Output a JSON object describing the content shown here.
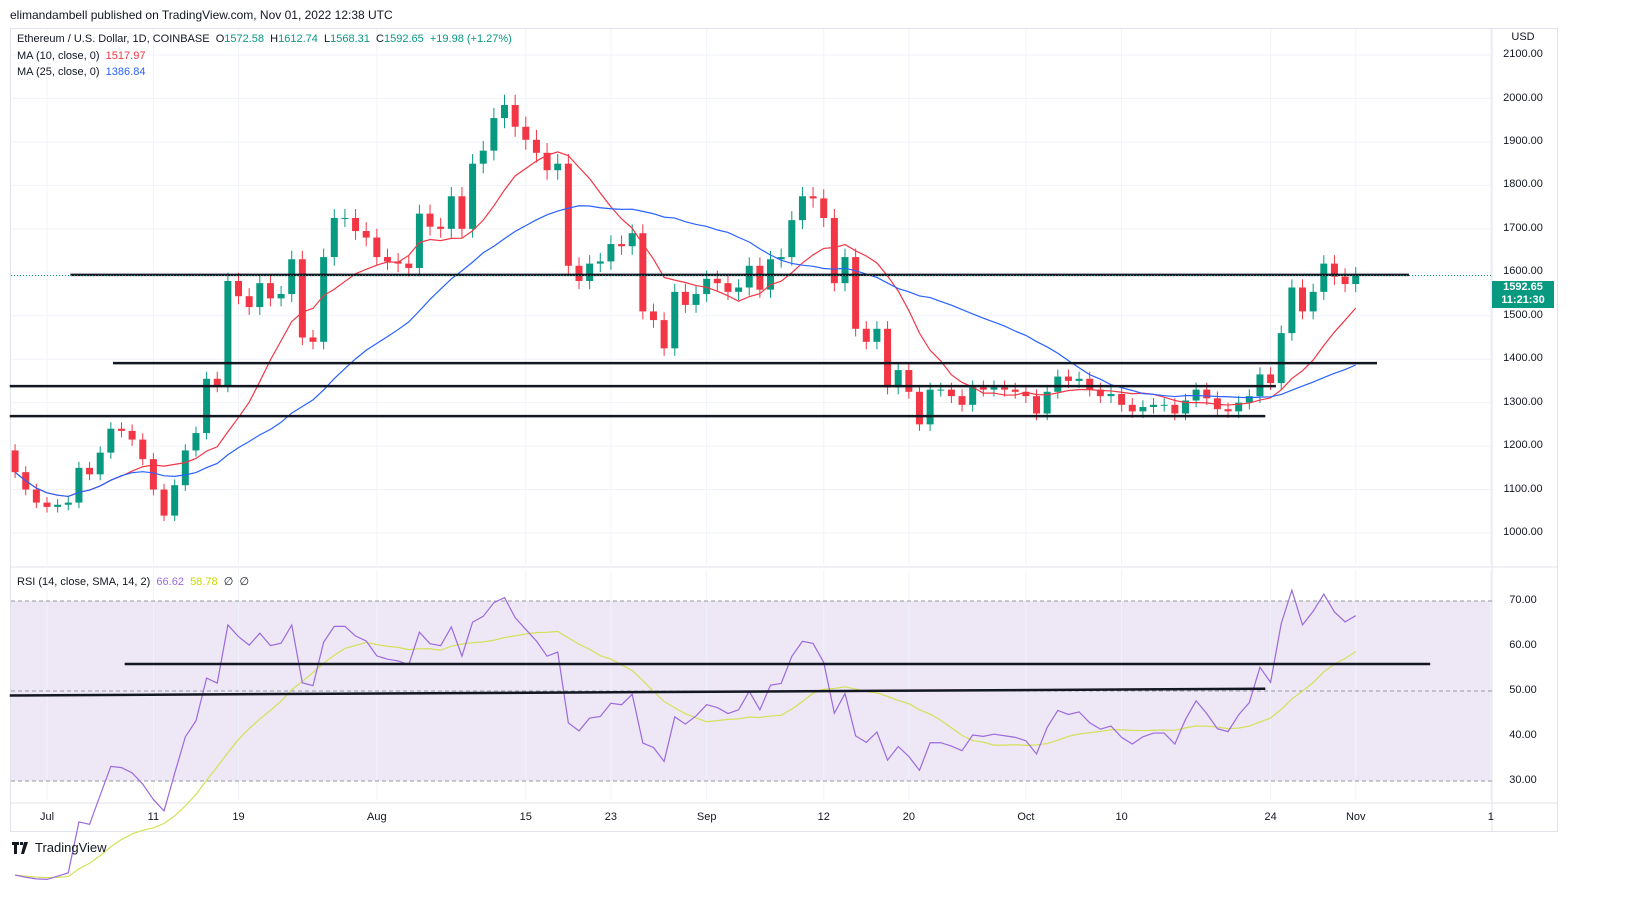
{
  "publisher_line": "elimandambell published on TradingView.com, Nov 01, 2022 12:38 UTC",
  "legend": {
    "symbol": "Ethereum / U.S. Dollar, 1D, COINBASE",
    "o_label": "O",
    "o": "1572.58",
    "h_label": "H",
    "h": "1612.74",
    "l_label": "L",
    "l": "1568.31",
    "c_label": "C",
    "c": "1592.65",
    "change": "+19.98 (+1.27%)",
    "ma10_label": "MA (10, close, 0)",
    "ma10": "1517.97",
    "ma25_label": "MA (25, close, 0)",
    "ma25": "1386.84",
    "rsi_label": "RSI (14, close, SMA, 14, 2)",
    "rsi": "66.62",
    "rsi_sma": "58.78",
    "rsi_extra1": "∅",
    "rsi_extra2": "∅"
  },
  "currency": "USD",
  "last_price": {
    "price": "1592.65",
    "countdown": "11:21:30"
  },
  "footer": {
    "brand": "TradingView",
    "icon": "tradingview-logo-icon"
  },
  "colors": {
    "up": "#089981",
    "down": "#f23645",
    "ma10": "#f23645",
    "ma25": "#2962ff",
    "rsi": "#9c6ade",
    "rsi_sma": "#d4e157",
    "rsi_band": "#ede7f6"
  },
  "chart_data": {
    "type": "candlestick",
    "title": "Ethereum / U.S. Dollar, 1D, COINBASE",
    "start_date": "2022-06-28",
    "closes": [
      1140,
      1100,
      1070,
      1060,
      1065,
      1070,
      1150,
      1135,
      1185,
      1240,
      1235,
      1215,
      1170,
      1100,
      1040,
      1110,
      1190,
      1230,
      1355,
      1340,
      1580,
      1545,
      1520,
      1575,
      1540,
      1550,
      1630,
      1450,
      1440,
      1635,
      1725,
      1725,
      1695,
      1680,
      1635,
      1625,
      1620,
      1610,
      1735,
      1705,
      1700,
      1775,
      1700,
      1850,
      1880,
      1955,
      1985,
      1935,
      1905,
      1875,
      1835,
      1850,
      1615,
      1580,
      1620,
      1625,
      1665,
      1660,
      1690,
      1510,
      1490,
      1425,
      1555,
      1525,
      1550,
      1585,
      1575,
      1555,
      1565,
      1615,
      1560,
      1630,
      1635,
      1720,
      1775,
      1770,
      1725,
      1575,
      1635,
      1470,
      1440,
      1470,
      1335,
      1375,
      1325,
      1250,
      1330,
      1330,
      1315,
      1295,
      1335,
      1330,
      1335,
      1330,
      1325,
      1315,
      1275,
      1325,
      1360,
      1350,
      1355,
      1330,
      1315,
      1320,
      1295,
      1280,
      1290,
      1295,
      1295,
      1275,
      1305,
      1330,
      1310,
      1285,
      1280,
      1300,
      1315,
      1365,
      1345,
      1460,
      1565,
      1510,
      1555,
      1620,
      1590,
      1573,
      1593
    ],
    "first_open": 1190,
    "price_axis": {
      "ticks": [
        "1000.00",
        "1100.00",
        "1200.00",
        "1300.00",
        "1400.00",
        "1500.00",
        "1600.00",
        "1700.00",
        "1800.00",
        "1900.00",
        "2000.00",
        "2100.00"
      ],
      "range": [
        960,
        2145
      ]
    },
    "rsi_axis": {
      "ticks": [
        "30.00",
        "40.00",
        "50.00",
        "60.00",
        "70.00"
      ],
      "band": [
        30,
        70
      ],
      "mid": 50
    },
    "time_ticks": [
      {
        "label": "Jul",
        "day": 3
      },
      {
        "label": "11",
        "day": 13
      },
      {
        "label": "19",
        "day": 21
      },
      {
        "label": "Aug",
        "day": 34
      },
      {
        "label": "15",
        "day": 48
      },
      {
        "label": "23",
        "day": 56
      },
      {
        "label": "Sep",
        "day": 65
      },
      {
        "label": "12",
        "day": 76
      },
      {
        "label": "20",
        "day": 84
      },
      {
        "label": "Oct",
        "day": 95
      },
      {
        "label": "10",
        "day": 104
      },
      {
        "label": "24",
        "day": 118
      },
      {
        "label": "Nov",
        "day": 126
      },
      {
        "label": "1",
        "day": 138.7
      }
    ],
    "moving_averages": [
      {
        "name": "MA 10",
        "period": 10
      },
      {
        "name": "MA 25",
        "period": 25
      }
    ],
    "rsi": {
      "period": 14,
      "sma_period": 14,
      "last": 66.62,
      "sma_last": 58.78
    },
    "support_lines": [
      {
        "price": 1594,
        "from_day": 5.2,
        "to_day": 131
      },
      {
        "price": 1391,
        "from_day": 9.2,
        "to_day": 128
      },
      {
        "price": 1338,
        "from_day": -0.5,
        "to_day": 118.5
      },
      {
        "price": 1269,
        "from_day": -0.5,
        "to_day": 117.5
      }
    ],
    "rsi_lines": [
      {
        "from_day": 10.3,
        "from": 56,
        "to_day": 133,
        "to": 56
      },
      {
        "from_day": -0.5,
        "from": 49,
        "to_day": 117.5,
        "to": 50.5
      }
    ]
  }
}
